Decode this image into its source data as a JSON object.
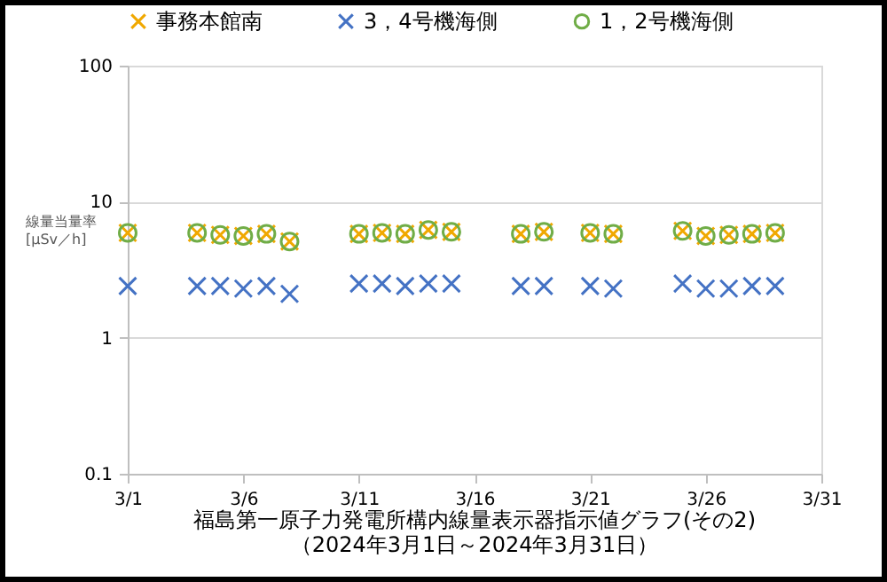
{
  "chart_data": {
    "type": "scatter",
    "title": "福島第一原子力発電所構内線量表示器指示値グラフ(その2)",
    "subtitle": "（2024年3月1日～2024年3月31日）",
    "ylabel": "線量当量率\n[μSv／h]",
    "x": [
      "--03-01",
      "--03-04",
      "--03-05",
      "--03-06",
      "--03-07",
      "--03-08",
      "--03-11",
      "--03-12",
      "--03-13",
      "--03-14",
      "--03-15",
      "--03-18",
      "--03-19",
      "--03-21",
      "--03-22",
      "--03-25",
      "--03-26",
      "--03-27",
      "--03-28",
      "--03-29"
    ],
    "series": [
      {
        "name": "事務本館南",
        "color": "#f0a800",
        "marker": "cross",
        "values": [
          5.9,
          5.9,
          5.7,
          5.6,
          5.8,
          5.1,
          5.8,
          5.9,
          5.8,
          6.2,
          6.0,
          5.8,
          6.0,
          5.9,
          5.8,
          6.1,
          5.6,
          5.7,
          5.8,
          5.9
        ]
      },
      {
        "name": "3，4号機海側",
        "color": "#4472c4",
        "marker": "cross",
        "values": [
          2.4,
          2.4,
          2.4,
          2.3,
          2.4,
          2.1,
          2.5,
          2.5,
          2.4,
          2.5,
          2.5,
          2.4,
          2.4,
          2.4,
          2.3,
          2.5,
          2.3,
          2.3,
          2.4,
          2.4
        ]
      },
      {
        "name": "1，2号機海側",
        "color": "#70ad47",
        "marker": "circle",
        "values": [
          5.9,
          5.9,
          5.7,
          5.6,
          5.8,
          5.1,
          5.8,
          5.9,
          5.8,
          6.2,
          6.0,
          5.8,
          6.0,
          5.9,
          5.8,
          6.1,
          5.6,
          5.7,
          5.8,
          5.9
        ]
      }
    ],
    "xlim": [
      "--03-01",
      "--03-31"
    ],
    "xticks": [
      {
        "value": "--03-01",
        "label": "3/1"
      },
      {
        "value": "--03-06",
        "label": "3/6"
      },
      {
        "value": "--03-11",
        "label": "3/11"
      },
      {
        "value": "--03-16",
        "label": "3/16"
      },
      {
        "value": "--03-21",
        "label": "3/21"
      },
      {
        "value": "--03-26",
        "label": "3/26"
      },
      {
        "value": "--03-31",
        "label": "3/31"
      }
    ],
    "ylim": [
      0.1,
      100
    ],
    "yticks": [
      0.1,
      1,
      10,
      100
    ],
    "log": "y",
    "grid": "y",
    "legend": "top"
  }
}
